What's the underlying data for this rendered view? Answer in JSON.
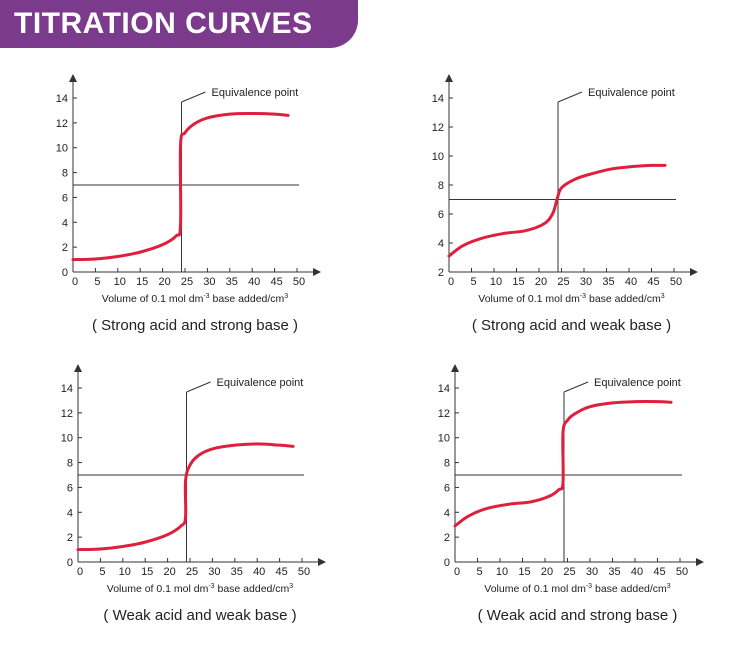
{
  "header": {
    "title": "TITRATION CURVES"
  },
  "colors": {
    "banner": "#7b3a8c",
    "curve": "#e01f3d",
    "axis": "#333333"
  },
  "chart_data": [
    {
      "type": "line",
      "title": "( Strong acid and strong base )",
      "xlabel": "Volume of 0.1 mol dm",
      "xlabel_sup": "-3",
      "xlabel_tail": " base added/cm",
      "xlabel_sup2": "3",
      "xlim": [
        0,
        50
      ],
      "ylim": [
        0,
        14
      ],
      "x_ticks": [
        0,
        5,
        10,
        15,
        20,
        25,
        30,
        35,
        40,
        45,
        50
      ],
      "y_ticks": [
        0,
        2,
        4,
        6,
        8,
        10,
        12,
        14
      ],
      "annotation": "Equivalence point",
      "equivalence_x": 24,
      "reference_y": 7,
      "series": [
        {
          "points": [
            [
              0,
              1
            ],
            [
              5,
              1.05
            ],
            [
              10,
              1.25
            ],
            [
              15,
              1.6
            ],
            [
              20,
              2.2
            ],
            [
              23,
              2.9
            ],
            [
              24,
              3.8
            ],
            [
              24,
              10.2
            ],
            [
              25,
              11.2
            ],
            [
              27,
              11.9
            ],
            [
              30,
              12.4
            ],
            [
              35,
              12.7
            ],
            [
              40,
              12.75
            ],
            [
              45,
              12.7
            ],
            [
              48,
              12.6
            ]
          ]
        }
      ]
    },
    {
      "type": "line",
      "title": "( Strong acid and weak base )",
      "xlabel": "Volume of 0.1 mol dm",
      "xlabel_sup": "-3",
      "xlabel_tail": " base added/cm",
      "xlabel_sup2": "3",
      "xlim": [
        0,
        50
      ],
      "ylim": [
        2,
        14
      ],
      "x_ticks": [
        0,
        5,
        10,
        15,
        20,
        25,
        30,
        35,
        40,
        45,
        50
      ],
      "y_ticks": [
        2,
        4,
        6,
        8,
        10,
        12,
        14
      ],
      "annotation": "Equivalence point",
      "equivalence_x": 24,
      "reference_y": 7,
      "series": [
        {
          "points": [
            [
              0,
              3.1
            ],
            [
              3,
              3.8
            ],
            [
              7,
              4.3
            ],
            [
              12,
              4.65
            ],
            [
              17,
              4.85
            ],
            [
              21,
              5.3
            ],
            [
              23,
              6.0
            ],
            [
              24,
              7.0
            ],
            [
              25,
              7.8
            ],
            [
              28,
              8.4
            ],
            [
              32,
              8.8
            ],
            [
              36,
              9.1
            ],
            [
              40,
              9.25
            ],
            [
              45,
              9.35
            ],
            [
              48,
              9.35
            ]
          ]
        }
      ]
    },
    {
      "type": "line",
      "title": "( Weak acid and weak base )",
      "xlabel": "Volume of 0.1 mol dm",
      "xlabel_sup": "-3",
      "xlabel_tail": " base added/cm",
      "xlabel_sup2": "3",
      "xlim": [
        0,
        50
      ],
      "ylim": [
        0,
        14
      ],
      "x_ticks": [
        0,
        5,
        10,
        15,
        20,
        25,
        30,
        35,
        40,
        45,
        50
      ],
      "y_ticks": [
        0,
        2,
        4,
        6,
        8,
        10,
        12,
        14
      ],
      "annotation": "Equivalence point",
      "equivalence_x": 24,
      "reference_y": 7,
      "series": [
        {
          "points": [
            [
              0,
              1
            ],
            [
              5,
              1.05
            ],
            [
              10,
              1.25
            ],
            [
              15,
              1.6
            ],
            [
              20,
              2.2
            ],
            [
              23,
              2.9
            ],
            [
              24,
              3.6
            ],
            [
              24,
              6.5
            ],
            [
              25,
              7.8
            ],
            [
              27,
              8.6
            ],
            [
              30,
              9.1
            ],
            [
              35,
              9.4
            ],
            [
              40,
              9.5
            ],
            [
              45,
              9.4
            ],
            [
              48,
              9.3
            ]
          ]
        }
      ]
    },
    {
      "type": "line",
      "title": "( Weak acid and strong base )",
      "xlabel": "Volume of 0.1 mol dm",
      "xlabel_sup": "-3",
      "xlabel_tail": " base added/cm",
      "xlabel_sup2": "3",
      "xlim": [
        0,
        50
      ],
      "ylim": [
        0,
        14
      ],
      "x_ticks": [
        0,
        5,
        10,
        15,
        20,
        25,
        30,
        35,
        40,
        45,
        50
      ],
      "y_ticks": [
        0,
        2,
        4,
        6,
        8,
        10,
        12,
        14
      ],
      "annotation": "Equivalence point",
      "equivalence_x": 24,
      "reference_y": 7,
      "series": [
        {
          "points": [
            [
              0,
              2.9
            ],
            [
              3,
              3.7
            ],
            [
              7,
              4.3
            ],
            [
              12,
              4.65
            ],
            [
              17,
              4.85
            ],
            [
              21,
              5.3
            ],
            [
              23,
              5.8
            ],
            [
              24,
              6.4
            ],
            [
              24,
              10.4
            ],
            [
              25,
              11.4
            ],
            [
              27,
              12.0
            ],
            [
              30,
              12.5
            ],
            [
              35,
              12.8
            ],
            [
              40,
              12.9
            ],
            [
              45,
              12.9
            ],
            [
              48,
              12.85
            ]
          ]
        }
      ]
    }
  ]
}
